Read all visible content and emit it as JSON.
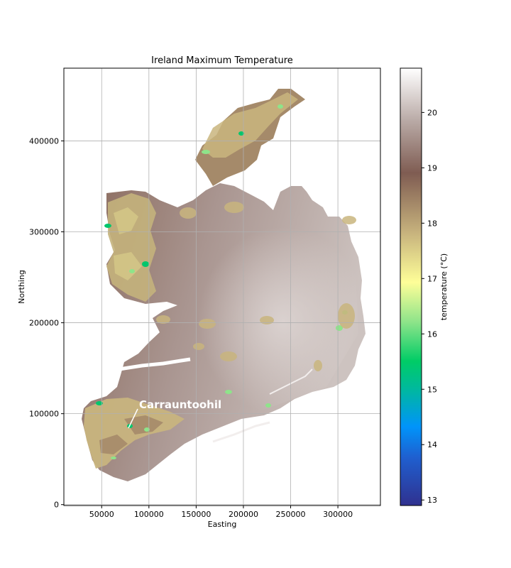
{
  "chart_data": {
    "type": "heatmap",
    "title": "Ireland Maximum Temperature",
    "xlabel": "Easting",
    "ylabel": "Northing",
    "xlim": [
      10000,
      345000
    ],
    "ylim": [
      -1000,
      480000
    ],
    "xticks": [
      50000,
      100000,
      150000,
      200000,
      250000,
      300000
    ],
    "yticks": [
      0,
      100000,
      200000,
      300000,
      400000
    ],
    "grid": true,
    "colorbar": {
      "label": "temperature (°C)",
      "range": [
        12.9,
        20.8
      ],
      "ticks": [
        13,
        14,
        15,
        16,
        17,
        18,
        19,
        20
      ],
      "colormap": "terrain"
    },
    "annotation": {
      "text": "Carrauntoohil",
      "text_position": [
        90000,
        107000
      ],
      "point": [
        80000,
        83000
      ]
    }
  },
  "colors": {
    "low_dark_blue": "#30318f",
    "blue": "#0094fa",
    "green": "#00c66c",
    "light_green": "#8ee48a",
    "yellow": "#fefe98",
    "tan": "#c4b27c",
    "brown": "#7f5c52",
    "light_grey": "#c8bcb9",
    "white": "#ffffff"
  }
}
